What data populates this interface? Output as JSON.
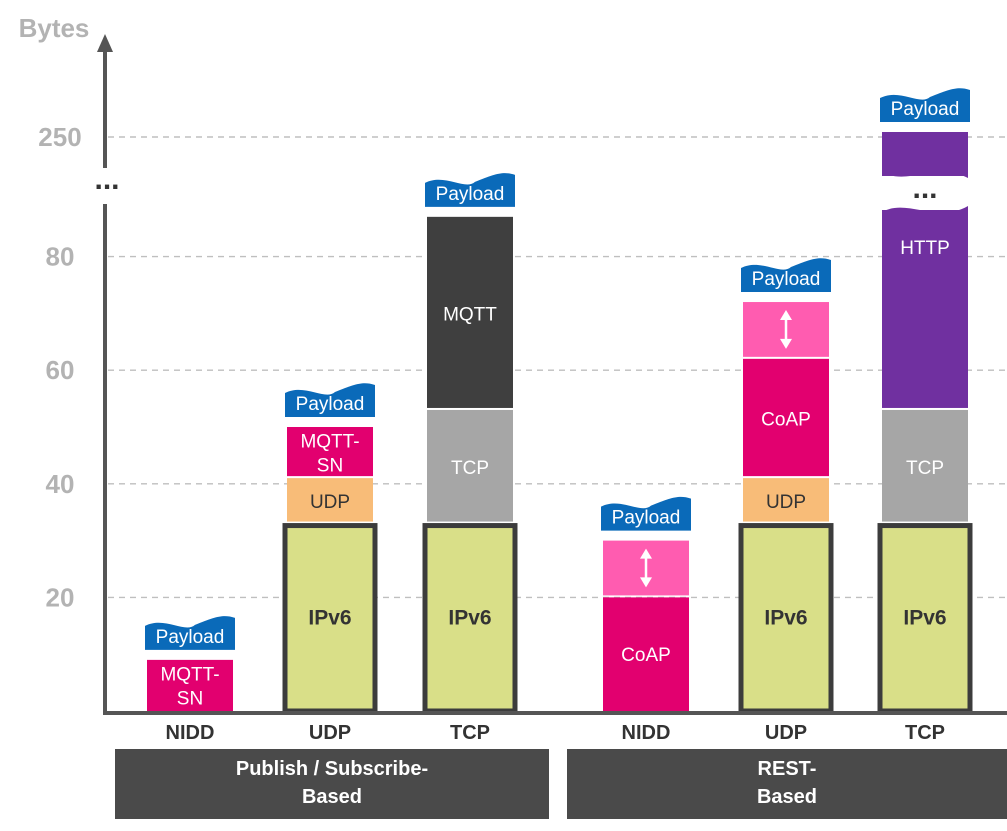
{
  "chart_data": {
    "type": "bar",
    "stacked": true,
    "ylabel": "Bytes",
    "yticks": [
      "20",
      "40",
      "60",
      "80",
      "250"
    ],
    "axis_break_label": "...",
    "grid": "dashed horizontal",
    "colors": {
      "payload": "#0a6ab9",
      "mqttsn": "#e2006f",
      "udp": "#f8bc78",
      "ipv6": "#d9df88",
      "ipv6_border": "#3c3c3c",
      "tcp": "#a6a6a6",
      "mqtt": "#3f3f3f",
      "coap": "#e2006f",
      "coap_opt": "#ff5cb0",
      "http": "#7030a0",
      "group": "#4a4a4a",
      "axis": "#555555",
      "grid": "#bfbfbf"
    },
    "groups": [
      "Publish / Subscribe-\nBased",
      "REST-\nBased"
    ],
    "bars": [
      {
        "category": "NIDD",
        "group": 0,
        "segments": [
          {
            "label": "MQTT-\nSN",
            "from": 0,
            "to": 9,
            "color": "mqttsn"
          }
        ],
        "payload_label": "Payload"
      },
      {
        "category": "UDP",
        "group": 0,
        "segments": [
          {
            "label": "IPv6",
            "from": 0,
            "to": 33,
            "color": "ipv6",
            "boxed": true
          },
          {
            "label": "UDP",
            "from": 33,
            "to": 41,
            "color": "udp"
          },
          {
            "label": "MQTT-\nSN",
            "from": 41,
            "to": 50,
            "color": "mqttsn"
          }
        ],
        "payload_label": "Payload"
      },
      {
        "category": "TCP",
        "group": 0,
        "segments": [
          {
            "label": "IPv6",
            "from": 0,
            "to": 33,
            "color": "ipv6",
            "boxed": true
          },
          {
            "label": "TCP",
            "from": 33,
            "to": 53,
            "color": "tcp"
          },
          {
            "label": "MQTT",
            "from": 53,
            "to": 87,
            "color": "mqtt"
          }
        ],
        "payload_label": "Payload"
      },
      {
        "category": "NIDD",
        "group": 1,
        "segments": [
          {
            "label": "CoAP",
            "from": 0,
            "to": 20,
            "color": "coap"
          },
          {
            "label": "",
            "from": 20,
            "to": 30,
            "color": "coap_opt",
            "arrow": true
          }
        ],
        "payload_label": "Payload"
      },
      {
        "category": "UDP",
        "group": 1,
        "segments": [
          {
            "label": "IPv6",
            "from": 0,
            "to": 33,
            "color": "ipv6",
            "boxed": true
          },
          {
            "label": "UDP",
            "from": 33,
            "to": 41,
            "color": "udp"
          },
          {
            "label": "CoAP",
            "from": 41,
            "to": 62,
            "color": "coap"
          },
          {
            "label": "",
            "from": 62,
            "to": 72,
            "color": "coap_opt",
            "arrow": true
          }
        ],
        "payload_label": "Payload"
      },
      {
        "category": "TCP",
        "group": 1,
        "segments": [
          {
            "label": "IPv6",
            "from": 0,
            "to": 33,
            "color": "ipv6",
            "boxed": true
          },
          {
            "label": "TCP",
            "from": 33,
            "to": 53,
            "color": "tcp"
          },
          {
            "label": "HTTP",
            "from": 53,
            "to": 255,
            "color": "http",
            "broken": true,
            "dots": "..."
          }
        ],
        "payload_label": "Payload"
      }
    ]
  }
}
